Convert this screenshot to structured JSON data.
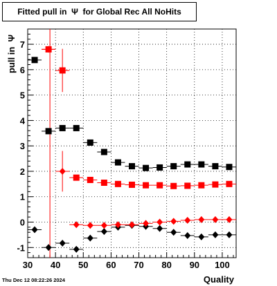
{
  "title": "Fitted pull in  Ψ  for Global Rec All NoHits",
  "timestamp": "Thu Dec 12 08:22:26 2024",
  "colors": {
    "black": "#000000",
    "red": "#ff0000",
    "grid": "#000000"
  },
  "chart_data": {
    "type": "scatter",
    "xlabel": "Quality",
    "ylabel": "pull in  Ψ",
    "xlim": [
      30,
      105
    ],
    "ylim": [
      -1.4,
      7.6
    ],
    "x_ticks": [
      30,
      40,
      50,
      60,
      70,
      80,
      90,
      100
    ],
    "y_ticks": [
      -1,
      0,
      1,
      2,
      3,
      4,
      5,
      6,
      7
    ],
    "grid": true,
    "vertical_line": {
      "x": 38,
      "color": "#ff0000"
    },
    "series": [
      {
        "marker": "square",
        "color": "#000000",
        "points": [
          {
            "x": 32.5,
            "y": 6.38,
            "err": 0.05
          },
          {
            "x": 37.5,
            "y": 3.58,
            "err": 0.05
          },
          {
            "x": 42.5,
            "y": 3.7,
            "err": 0.05
          },
          {
            "x": 47.5,
            "y": 3.7,
            "err": 0.05
          },
          {
            "x": 52.5,
            "y": 3.13,
            "err": 0.05
          },
          {
            "x": 57.5,
            "y": 2.76,
            "err": 0.05
          },
          {
            "x": 62.5,
            "y": 2.35,
            "err": 0.05
          },
          {
            "x": 67.5,
            "y": 2.2,
            "err": 0.05
          },
          {
            "x": 72.5,
            "y": 2.13,
            "err": 0.05
          },
          {
            "x": 77.5,
            "y": 2.15,
            "err": 0.05
          },
          {
            "x": 82.5,
            "y": 2.2,
            "err": 0.05
          },
          {
            "x": 87.5,
            "y": 2.27,
            "err": 0.05
          },
          {
            "x": 92.5,
            "y": 2.27,
            "err": 0.05
          },
          {
            "x": 97.5,
            "y": 2.2,
            "err": 0.05
          },
          {
            "x": 102.5,
            "y": 2.17,
            "err": 0.05
          }
        ]
      },
      {
        "marker": "square",
        "color": "#ff0000",
        "points": [
          {
            "x": 37.5,
            "y": 6.8,
            "err": 0.05
          },
          {
            "x": 42.5,
            "y": 5.97,
            "err": 0.85
          },
          {
            "x": 47.5,
            "y": 1.75,
            "err": 0.05
          },
          {
            "x": 52.5,
            "y": 1.66,
            "err": 0.05
          },
          {
            "x": 57.5,
            "y": 1.55,
            "err": 0.05
          },
          {
            "x": 62.5,
            "y": 1.5,
            "err": 0.05
          },
          {
            "x": 67.5,
            "y": 1.47,
            "err": 0.05
          },
          {
            "x": 72.5,
            "y": 1.45,
            "err": 0.05
          },
          {
            "x": 77.5,
            "y": 1.45,
            "err": 0.05
          },
          {
            "x": 82.5,
            "y": 1.42,
            "err": 0.05
          },
          {
            "x": 87.5,
            "y": 1.43,
            "err": 0.05
          },
          {
            "x": 92.5,
            "y": 1.45,
            "err": 0.05
          },
          {
            "x": 97.5,
            "y": 1.48,
            "err": 0.05
          },
          {
            "x": 102.5,
            "y": 1.5,
            "err": 0.05
          }
        ]
      },
      {
        "marker": "diamond",
        "color": "#000000",
        "points": [
          {
            "x": 32.5,
            "y": -0.3,
            "err": 0.05
          },
          {
            "x": 37.5,
            "y": -1.0,
            "err": 0.05
          },
          {
            "x": 42.5,
            "y": -0.83,
            "err": 0.05
          },
          {
            "x": 47.5,
            "y": -1.07,
            "err": 0.05
          },
          {
            "x": 52.5,
            "y": -0.63,
            "err": 0.05
          },
          {
            "x": 57.5,
            "y": -0.37,
            "err": 0.05
          },
          {
            "x": 62.5,
            "y": -0.2,
            "err": 0.05
          },
          {
            "x": 67.5,
            "y": -0.13,
            "err": 0.05
          },
          {
            "x": 72.5,
            "y": -0.17,
            "err": 0.05
          },
          {
            "x": 77.5,
            "y": -0.25,
            "err": 0.05
          },
          {
            "x": 82.5,
            "y": -0.4,
            "err": 0.05
          },
          {
            "x": 87.5,
            "y": -0.53,
            "err": 0.05
          },
          {
            "x": 92.5,
            "y": -0.58,
            "err": 0.05
          },
          {
            "x": 97.5,
            "y": -0.5,
            "err": 0.05
          },
          {
            "x": 102.5,
            "y": -0.5,
            "err": 0.05
          }
        ]
      },
      {
        "marker": "diamond",
        "color": "#ff0000",
        "points": [
          {
            "x": 37.5,
            "y": 6.8,
            "err": 0.05
          },
          {
            "x": 42.5,
            "y": 2.0,
            "err": 0.8
          },
          {
            "x": 47.5,
            "y": -0.1,
            "err": 0.05
          },
          {
            "x": 52.5,
            "y": -0.13,
            "err": 0.05
          },
          {
            "x": 57.5,
            "y": -0.13,
            "err": 0.05
          },
          {
            "x": 62.5,
            "y": -0.1,
            "err": 0.05
          },
          {
            "x": 67.5,
            "y": -0.1,
            "err": 0.05
          },
          {
            "x": 72.5,
            "y": -0.05,
            "err": 0.05
          },
          {
            "x": 77.5,
            "y": 0.0,
            "err": 0.05
          },
          {
            "x": 82.5,
            "y": 0.03,
            "err": 0.05
          },
          {
            "x": 87.5,
            "y": 0.07,
            "err": 0.05
          },
          {
            "x": 92.5,
            "y": 0.1,
            "err": 0.05
          },
          {
            "x": 97.5,
            "y": 0.1,
            "err": 0.05
          },
          {
            "x": 102.5,
            "y": 0.1,
            "err": 0.05
          }
        ]
      }
    ]
  }
}
